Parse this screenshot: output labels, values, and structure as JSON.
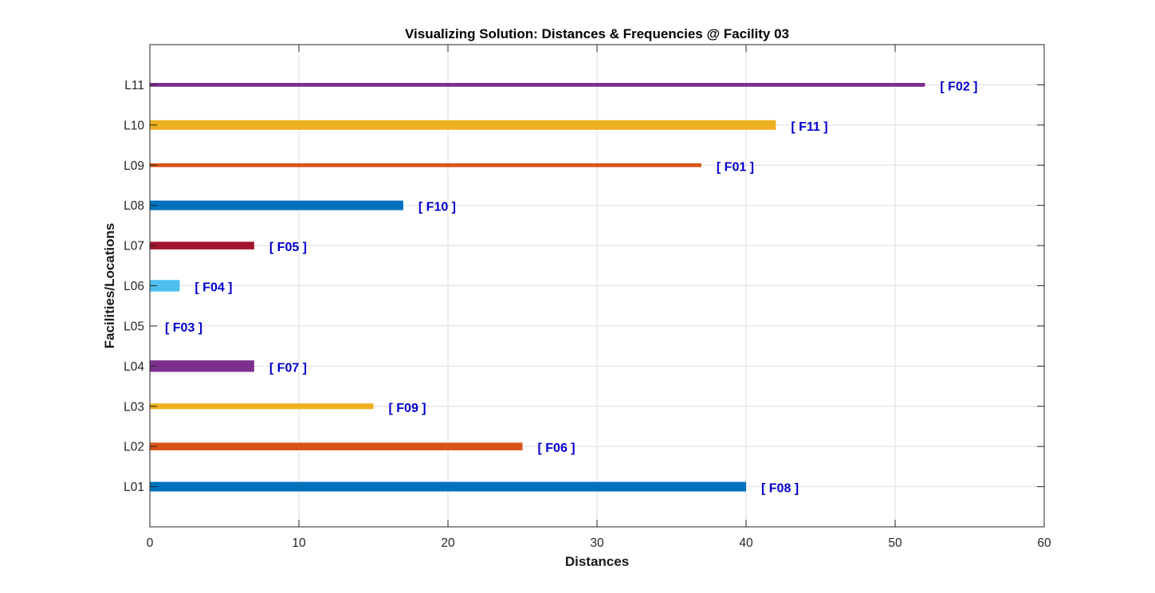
{
  "chart_data": {
    "type": "bar",
    "orientation": "horizontal",
    "title": "Visualizing Solution: Distances & Frequencies @ Facility 03",
    "xlabel": "Distances",
    "ylabel": "Facilities/Locations",
    "xlim": [
      0,
      60
    ],
    "xticks": [
      0,
      10,
      20,
      30,
      40,
      50,
      60
    ],
    "ylim": [
      0,
      12
    ],
    "grid": true,
    "categories": [
      "L01",
      "L02",
      "L03",
      "L04",
      "L05",
      "L06",
      "L07",
      "L08",
      "L09",
      "L10",
      "L11"
    ],
    "values": [
      40,
      25,
      15,
      7,
      0,
      2,
      7,
      17,
      37,
      42,
      52
    ],
    "frequencies": [
      5,
      4,
      3,
      6,
      0,
      6,
      4,
      5,
      2,
      5,
      2
    ],
    "labels": [
      "[ F08 ]",
      "[ F06 ]",
      "[ F09 ]",
      "[ F07 ]",
      "[ F03 ]",
      "[ F04 ]",
      "[ F05 ]",
      "[ F10 ]",
      "[ F01 ]",
      "[ F11 ]",
      "[ F02 ]"
    ],
    "colors": [
      "#0072bd",
      "#d95319",
      "#edb120",
      "#7e2f8e",
      "#77ac30",
      "#4dbeee",
      "#a2142f",
      "#0072bd",
      "#d95319",
      "#edb120",
      "#7e2f8e"
    ],
    "label_color": "#0000cd"
  }
}
